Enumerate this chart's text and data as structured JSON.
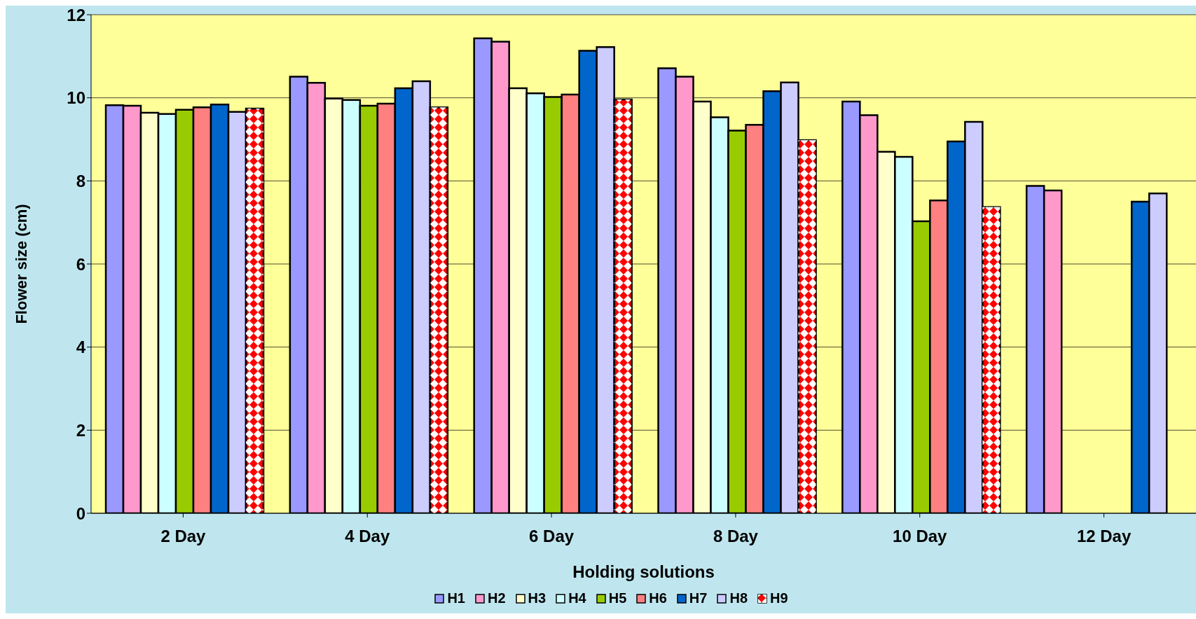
{
  "chart_data": {
    "type": "bar",
    "xlabel": "Holding solutions",
    "ylabel": "Flower size (cm)",
    "categories": [
      "2 Day",
      "4 Day",
      "6 Day",
      "8 Day",
      "10 Day",
      "12 Day"
    ],
    "series": [
      {
        "name": "H1",
        "color": "#9999ff",
        "values": [
          9.82,
          10.51,
          11.43,
          10.71,
          9.91,
          7.88
        ]
      },
      {
        "name": "H2",
        "color": "#ff99cc",
        "values": [
          9.81,
          10.36,
          11.35,
          10.51,
          9.58,
          7.77
        ]
      },
      {
        "name": "H3",
        "color": "#ffffcc",
        "values": [
          9.64,
          9.98,
          10.23,
          9.91,
          8.7,
          null
        ]
      },
      {
        "name": "H4",
        "color": "#ccffff",
        "values": [
          9.61,
          9.95,
          10.11,
          9.53,
          8.58,
          null
        ]
      },
      {
        "name": "H5",
        "color": "#99cc00",
        "values": [
          9.71,
          9.81,
          10.02,
          9.21,
          7.03,
          null
        ]
      },
      {
        "name": "H6",
        "color": "#ff8080",
        "values": [
          9.77,
          9.86,
          10.08,
          9.35,
          7.53,
          null
        ]
      },
      {
        "name": "H7",
        "color": "#0066cc",
        "values": [
          9.84,
          10.23,
          11.13,
          10.16,
          8.95,
          7.5
        ]
      },
      {
        "name": "H8",
        "color": "#ccccff",
        "values": [
          9.66,
          10.4,
          11.22,
          10.37,
          9.42,
          7.7
        ]
      },
      {
        "name": "H9",
        "color": "#ff0000",
        "values": [
          9.74,
          9.77,
          9.96,
          8.98,
          7.37,
          null
        ]
      }
    ],
    "ylim": [
      0,
      12
    ],
    "yticks": [
      0,
      2,
      4,
      6,
      8,
      10,
      12
    ],
    "grid": "y",
    "legend": "bottom"
  }
}
